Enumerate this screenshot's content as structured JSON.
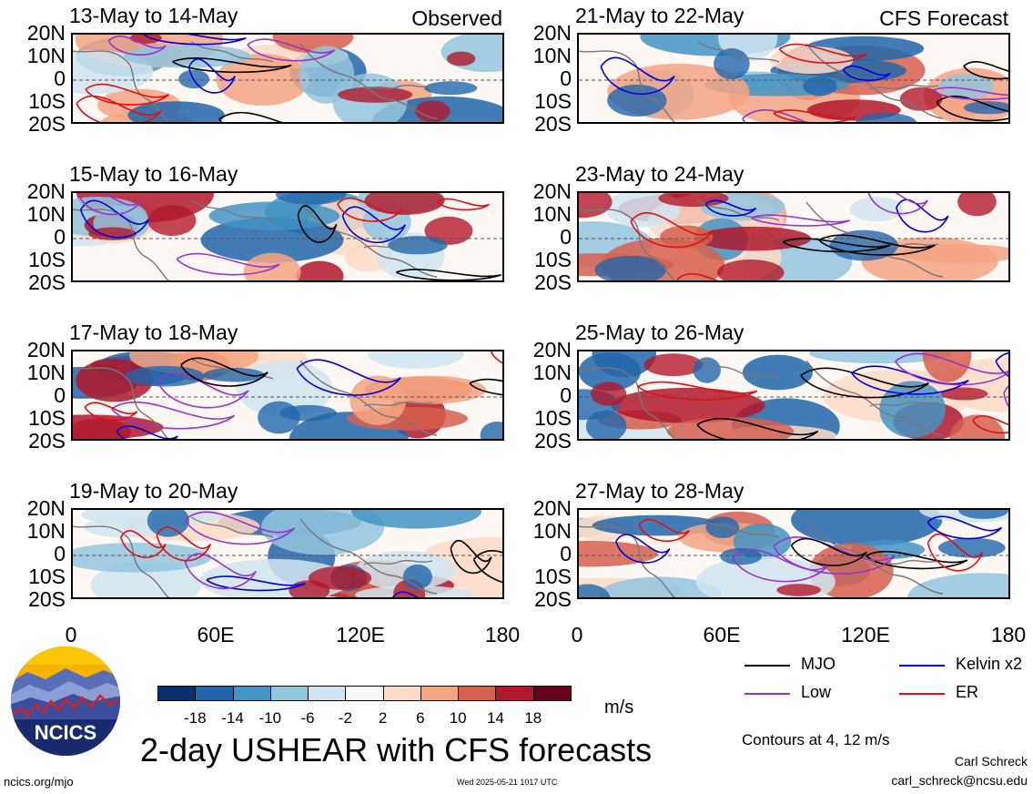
{
  "panels": [
    {
      "date": "13-May to 14-May",
      "label": "Observed"
    },
    {
      "date": "21-May to 22-May",
      "label": "CFS Forecast"
    },
    {
      "date": "15-May to 16-May",
      "label": ""
    },
    {
      "date": "23-May to 24-May",
      "label": ""
    },
    {
      "date": "17-May to 18-May",
      "label": ""
    },
    {
      "date": "25-May to 26-May",
      "label": ""
    },
    {
      "date": "19-May to 20-May",
      "label": ""
    },
    {
      "date": "27-May to 28-May",
      "label": ""
    }
  ],
  "lat_labels": [
    "20N",
    "10N",
    "0",
    "10S",
    "20S"
  ],
  "lon_labels": [
    "0",
    "60E",
    "120E",
    "180"
  ],
  "colorbar": {
    "ticks": [
      "-18",
      "-14",
      "-10",
      "-6",
      "-2",
      "2",
      "6",
      "10",
      "14",
      "18"
    ],
    "colors": [
      "#08306b",
      "#2166ac",
      "#4393c3",
      "#92c5de",
      "#d1e5f0",
      "#f7f7f7",
      "#fddbc7",
      "#f4a582",
      "#d6604d",
      "#b2182b",
      "#67001f"
    ],
    "unit": "m/s"
  },
  "legend": [
    {
      "label": "MJO",
      "color": "#000000"
    },
    {
      "label": "Kelvin x2",
      "color": "#0000dd"
    },
    {
      "label": "Low",
      "color": "#9933cc"
    },
    {
      "label": "ER",
      "color": "#e01010"
    }
  ],
  "title": "2-day USHEAR with CFS forecasts",
  "contours_note": "Contours at 4, 12 m/s",
  "logo_text": "NCICS",
  "website": "ncics.org/mjo",
  "timestamp": "Wed 2025-05-21 1017 UTC",
  "author": "Carl Schreck",
  "email": "carl_schreck@ncsu.edu"
}
